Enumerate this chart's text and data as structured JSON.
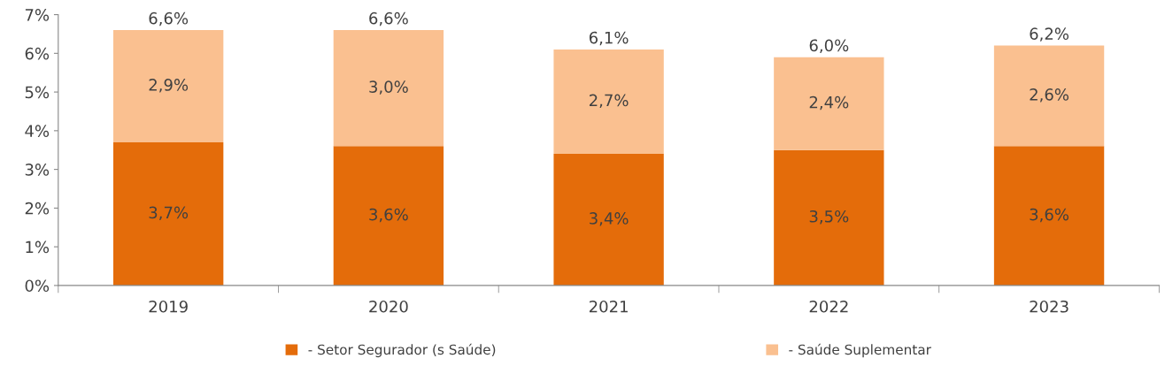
{
  "chart_data": {
    "type": "bar",
    "stacked": true,
    "categories": [
      "2019",
      "2020",
      "2021",
      "2022",
      "2023"
    ],
    "series": [
      {
        "name": "- Setor Segurador (s Saúde)",
        "color": "#e46c0a",
        "values": [
          3.7,
          3.6,
          3.4,
          3.5,
          3.6
        ],
        "value_labels": [
          "3,7%",
          "3,6%",
          "3,4%",
          "3,5%",
          "3,6%"
        ]
      },
      {
        "name": "- Saúde Suplementar",
        "color": "#fac090",
        "values": [
          2.9,
          3.0,
          2.7,
          2.4,
          2.6
        ],
        "value_labels": [
          "2,9%",
          "3,0%",
          "2,7%",
          "2,4%",
          "2,6%"
        ]
      }
    ],
    "totals": [
      "6,6%",
      "6,6%",
      "6,1%",
      "6,0%",
      "6,2%"
    ],
    "ylim": [
      0,
      7
    ],
    "yticks": [
      {
        "value": 0,
        "label": "0%"
      },
      {
        "value": 1,
        "label": "1%"
      },
      {
        "value": 2,
        "label": "2%"
      },
      {
        "value": 3,
        "label": "3%"
      },
      {
        "value": 4,
        "label": "4%"
      },
      {
        "value": 5,
        "label": "5%"
      },
      {
        "value": 6,
        "label": "6%"
      },
      {
        "value": 7,
        "label": "7%"
      }
    ],
    "grid": false,
    "legend": "bottom"
  }
}
